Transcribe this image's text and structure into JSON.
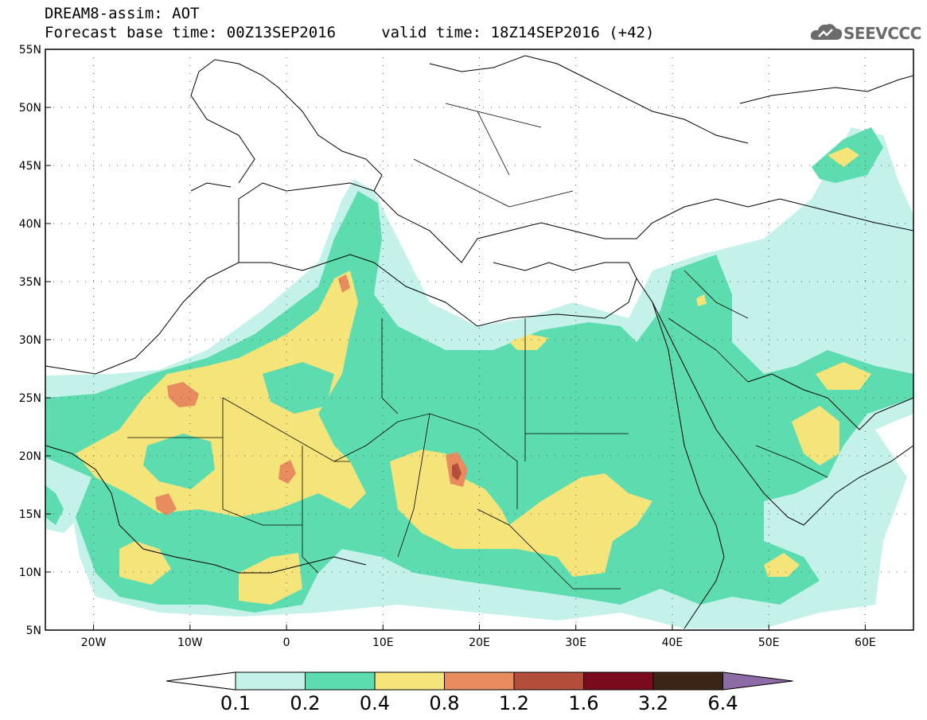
{
  "header": {
    "title_line1": "DREAM8-assim: AOT",
    "title_line2": "Forecast base time: 00Z13SEP2016     valid time: 18Z14SEP2016 (+42)",
    "logo_text": "SEEVCCC"
  },
  "map": {
    "lat_labels": [
      "55N",
      "50N",
      "45N",
      "40N",
      "35N",
      "30N",
      "25N",
      "20N",
      "15N",
      "10N",
      "5N"
    ],
    "lon_labels": [
      "20W",
      "10W",
      "0",
      "10E",
      "20E",
      "30E",
      "40E",
      "50E",
      "60E"
    ],
    "lat_range": [
      5,
      55
    ],
    "lon_range": [
      -25,
      65
    ],
    "grid": "dotted"
  },
  "colorbar": {
    "levels": [
      "0.1",
      "0.2",
      "0.4",
      "0.8",
      "1.2",
      "1.6",
      "3.2",
      "6.4"
    ],
    "colors": [
      "#c4f1ea",
      "#5ddcb0",
      "#f5e47a",
      "#e88b5e",
      "#b34e3a",
      "#7a0a1e",
      "#3b2516"
    ],
    "under_color": "#ffffff",
    "over_color": "#8e6aa6"
  },
  "colors": {
    "very_light": "#c4f1ea",
    "green": "#5ddcb0",
    "yellow": "#f5e47a",
    "orange": "#e88b5e",
    "red": "#b34e3a"
  }
}
